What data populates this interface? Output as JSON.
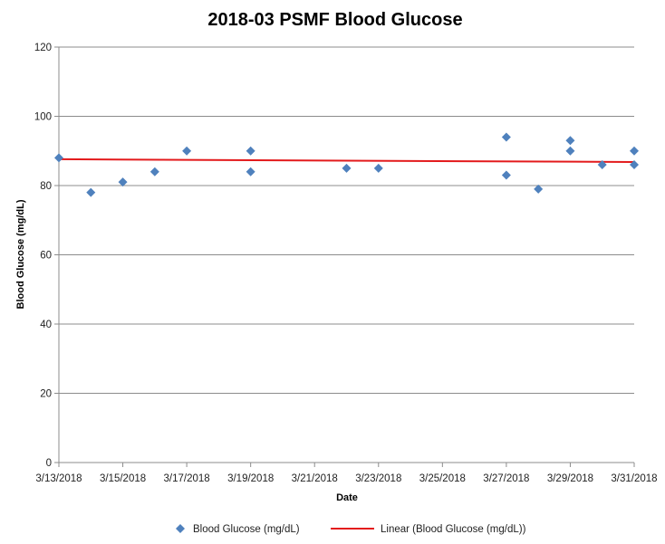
{
  "chart_data": {
    "type": "scatter",
    "title": "2018-03 PSMF Blood Glucose",
    "xlabel": "Date",
    "ylabel": "Blood Glucose  (mg/dL)",
    "ylim": [
      0,
      120
    ],
    "yticks": [
      0,
      20,
      40,
      60,
      80,
      100,
      120
    ],
    "xlim": [
      "2018-03-13",
      "2018-03-31"
    ],
    "xticks": [
      "3/13/2018",
      "3/15/2018",
      "3/17/2018",
      "3/19/2018",
      "3/21/2018",
      "3/23/2018",
      "3/25/2018",
      "3/27/2018",
      "3/29/2018",
      "3/31/2018"
    ],
    "grid": true,
    "legend_position": "bottom",
    "series": [
      {
        "name": "Blood Glucose (mg/dL)",
        "color": "#4f81bd",
        "marker": "diamond",
        "points": [
          {
            "x": "2018-03-13",
            "y": 88
          },
          {
            "x": "2018-03-14",
            "y": 78
          },
          {
            "x": "2018-03-15",
            "y": 81
          },
          {
            "x": "2018-03-16",
            "y": 84
          },
          {
            "x": "2018-03-17",
            "y": 90
          },
          {
            "x": "2018-03-19",
            "y": 90
          },
          {
            "x": "2018-03-19",
            "y": 84
          },
          {
            "x": "2018-03-22",
            "y": 85
          },
          {
            "x": "2018-03-23",
            "y": 85
          },
          {
            "x": "2018-03-27",
            "y": 94
          },
          {
            "x": "2018-03-27",
            "y": 83
          },
          {
            "x": "2018-03-28",
            "y": 79
          },
          {
            "x": "2018-03-29",
            "y": 93
          },
          {
            "x": "2018-03-29",
            "y": 90
          },
          {
            "x": "2018-03-30",
            "y": 86
          },
          {
            "x": "2018-03-31",
            "y": 90
          },
          {
            "x": "2018-03-31",
            "y": 86
          }
        ]
      }
    ],
    "trendline": {
      "name": "Linear (Blood Glucose (mg/dL))",
      "color": "#e31a1c",
      "type": "linear",
      "start": {
        "x": "2018-03-13",
        "y": 87.6
      },
      "end": {
        "x": "2018-03-31",
        "y": 86.8
      }
    }
  }
}
